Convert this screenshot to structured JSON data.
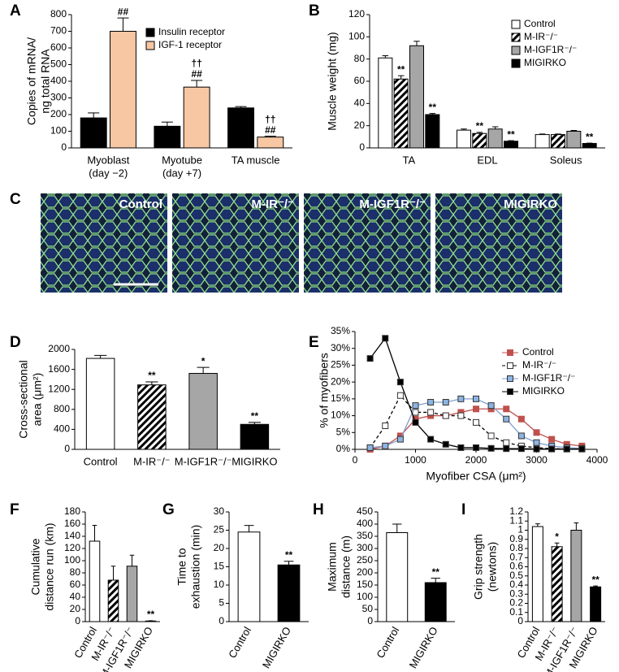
{
  "chart_data": [
    {
      "panel": "A",
      "type": "bar",
      "ylabel": [
        "Copies of mRNA/",
        "ng total RNA"
      ],
      "categories": [
        [
          "Myoblast",
          "(day −2)"
        ],
        [
          "Myotube",
          "(day +7)"
        ],
        [
          "TA muscle"
        ]
      ],
      "ylim": [
        0,
        800
      ],
      "yticks": [
        0,
        100,
        200,
        300,
        400,
        500,
        600,
        700,
        800
      ],
      "legend": "upper right",
      "series": [
        {
          "name": "Insulin receptor",
          "color": "#000000",
          "values": [
            180,
            130,
            240
          ],
          "errors": [
            30,
            25,
            8
          ]
        },
        {
          "name": "IGF-1 receptor",
          "color": "#f7c7a3",
          "values": [
            700,
            365,
            65
          ],
          "errors": [
            80,
            40,
            5
          ],
          "annotations": [
            [
              "##"
            ],
            [
              "††",
              "##"
            ],
            [
              "††",
              "##"
            ]
          ]
        }
      ]
    },
    {
      "panel": "B",
      "type": "bar",
      "ylabel": [
        "Muscle weight (mg)"
      ],
      "categories": [
        [
          "TA"
        ],
        [
          "EDL"
        ],
        [
          "Soleus"
        ]
      ],
      "ylim": [
        0,
        120
      ],
      "yticks": [
        0,
        20,
        40,
        60,
        80,
        100,
        120
      ],
      "legend": "upper right",
      "series": [
        {
          "name": "Control",
          "color": "#ffffff",
          "values": [
            81,
            16,
            12
          ],
          "errors": [
            2,
            1,
            0.5
          ]
        },
        {
          "name": "M-IR⁻/⁻",
          "color": "#ffffff",
          "pattern": "hatch",
          "values": [
            62,
            13,
            12
          ],
          "errors": [
            3,
            1,
            0.5
          ],
          "annotations": [
            [
              "**"
            ],
            [
              "**"
            ],
            null
          ]
        },
        {
          "name": "M-IGF1R⁻/⁻",
          "color": "#a6a6a6",
          "values": [
            92,
            17,
            15
          ],
          "errors": [
            4,
            2,
            0.7
          ]
        },
        {
          "name": "MIGIRKO",
          "color": "#000000",
          "values": [
            30,
            6,
            4
          ],
          "errors": [
            1,
            0.5,
            0.3
          ],
          "annotations": [
            [
              "**"
            ],
            [
              "**"
            ],
            [
              "**"
            ]
          ]
        }
      ]
    },
    {
      "panel": "D",
      "type": "bar",
      "ylabel": [
        "Cross-sectional",
        "area (μm²)"
      ],
      "categories": [
        [
          "Control"
        ],
        [
          "M-IR⁻/⁻"
        ],
        [
          "M-IGF1R⁻/⁻"
        ],
        [
          "MIGIRKO"
        ]
      ],
      "ylim": [
        0,
        2000
      ],
      "yticks": [
        0,
        400,
        800,
        1200,
        1600,
        2000
      ],
      "series": [
        {
          "colors": [
            "#ffffff",
            "#ffffff",
            "#a6a6a6",
            "#000000"
          ],
          "patterns": [
            null,
            "hatch",
            null,
            null
          ],
          "values": [
            1820,
            1290,
            1520,
            500
          ],
          "errors": [
            60,
            60,
            120,
            40
          ],
          "annotations": [
            null,
            [
              "**"
            ],
            [
              "*"
            ],
            [
              "**"
            ]
          ]
        }
      ]
    },
    {
      "panel": "E",
      "type": "line",
      "ylabel": [
        "% of myofibers"
      ],
      "xlabel": "Myofiber CSA (μm²)",
      "x": [
        250,
        500,
        750,
        1000,
        1250,
        1500,
        1750,
        2000,
        2250,
        2500,
        2750,
        3000,
        3250,
        3500,
        3750
      ],
      "xlim": [
        0,
        4000
      ],
      "xticks": [
        0,
        1000,
        2000,
        3000,
        4000
      ],
      "ylim": [
        0,
        35
      ],
      "yticks": [
        {
          "value": 0,
          "label": "0%"
        },
        {
          "value": 5,
          "label": "5%"
        },
        {
          "value": 10,
          "label": "10%"
        },
        {
          "value": 15,
          "label": "15%"
        },
        {
          "value": 20,
          "label": "20%"
        },
        {
          "value": 25,
          "label": "25%"
        },
        {
          "value": 30,
          "label": "30%"
        },
        {
          "value": 35,
          "label": "35%"
        }
      ],
      "legend": "upper right",
      "series": [
        {
          "name": "Control",
          "color": "#c0504d",
          "marker_fill": "#c0504d",
          "values": [
            0,
            1,
            4,
            9,
            10,
            10,
            11,
            12,
            12,
            12,
            9,
            5,
            3,
            1.5,
            1
          ]
        },
        {
          "name": "M-IR⁻/⁻",
          "color": "#000000",
          "marker_fill": "#ffffff",
          "linestyle": "dashed",
          "values": [
            0.5,
            7,
            16,
            11,
            11,
            10,
            10,
            8,
            4,
            2,
            1,
            0.5,
            0.2,
            0.1,
            0.1
          ]
        },
        {
          "name": "M-IGF1R⁻/⁻",
          "color": "#7f9fcf",
          "marker_fill": "#8db4e2",
          "values": [
            0.5,
            1,
            3,
            13,
            14,
            14,
            15,
            15,
            13,
            9,
            4,
            2,
            1,
            0.5,
            0.3
          ]
        },
        {
          "name": "MIGIRKO",
          "color": "#000000",
          "marker_fill": "#000000",
          "values": [
            27,
            33,
            20,
            8,
            3,
            1.5,
            0.5,
            0.5,
            0.3,
            0.2,
            0.2,
            0.1,
            0.1,
            0.1,
            0.1
          ]
        }
      ]
    },
    {
      "panel": "F",
      "type": "bar",
      "ylabel": [
        "Cumulative",
        "distance run (km)"
      ],
      "categories": [
        [
          "Control"
        ],
        [
          "M-IR⁻/⁻"
        ],
        [
          "M-IGF1R⁻/⁻"
        ],
        [
          "MIGIRKO"
        ]
      ],
      "ylim": [
        0,
        180
      ],
      "yticks": [
        0,
        20,
        40,
        60,
        80,
        100,
        120,
        140,
        160,
        180
      ],
      "series": [
        {
          "colors": [
            "#ffffff",
            "#ffffff",
            "#a6a6a6",
            "#000000"
          ],
          "patterns": [
            null,
            "hatch",
            null,
            null
          ],
          "values": [
            132,
            68,
            91,
            1
          ],
          "errors": [
            26,
            23,
            18,
            0.5
          ],
          "annotations": [
            null,
            null,
            null,
            [
              "**"
            ]
          ]
        }
      ]
    },
    {
      "panel": "G",
      "type": "bar",
      "ylabel": [
        "Time to",
        "exhaustion (min)"
      ],
      "categories": [
        [
          "Control"
        ],
        [
          "MIGIRKO"
        ]
      ],
      "ylim": [
        0,
        30
      ],
      "yticks": [
        0,
        5,
        10,
        15,
        20,
        25,
        30
      ],
      "series": [
        {
          "colors": [
            "#ffffff",
            "#000000"
          ],
          "values": [
            24.5,
            15.5
          ],
          "errors": [
            1.8,
            1
          ],
          "annotations": [
            null,
            [
              "**"
            ]
          ]
        }
      ]
    },
    {
      "panel": "H",
      "type": "bar",
      "ylabel": [
        "Maximum",
        "distance (m)"
      ],
      "categories": [
        [
          "Control"
        ],
        [
          "MIGIRKO"
        ]
      ],
      "ylim": [
        0,
        450
      ],
      "yticks": [
        0,
        50,
        100,
        150,
        200,
        250,
        300,
        350,
        400,
        450
      ],
      "series": [
        {
          "colors": [
            "#ffffff",
            "#000000"
          ],
          "values": [
            365,
            160
          ],
          "errors": [
            35,
            18
          ],
          "annotations": [
            null,
            [
              "**"
            ]
          ]
        }
      ]
    },
    {
      "panel": "I",
      "type": "bar",
      "ylabel": [
        "Grip strength",
        "(newtons)"
      ],
      "categories": [
        [
          "Control"
        ],
        [
          "M-IR⁻/⁻"
        ],
        [
          "M-IGF1R⁻/⁻"
        ],
        [
          "MIGIRKO"
        ]
      ],
      "ylim": [
        0,
        1.2
      ],
      "yticks": [
        0,
        0.1,
        0.2,
        0.3,
        0.4,
        0.5,
        0.6,
        0.7,
        0.8,
        0.9,
        1,
        1.1,
        1.2
      ],
      "series": [
        {
          "colors": [
            "#ffffff",
            "#ffffff",
            "#a6a6a6",
            "#000000"
          ],
          "patterns": [
            null,
            "hatch",
            null,
            null
          ],
          "values": [
            1.04,
            0.82,
            1.0,
            0.38
          ],
          "errors": [
            0.03,
            0.04,
            0.08,
            0.01
          ],
          "annotations": [
            null,
            [
              "*"
            ],
            null,
            [
              "**"
            ]
          ]
        }
      ]
    }
  ],
  "micrographs": {
    "panel": "C",
    "labels": [
      "Control",
      "M-IR⁻/⁻",
      "M-IGF1R⁻/⁻",
      "MIGIRKO"
    ]
  }
}
